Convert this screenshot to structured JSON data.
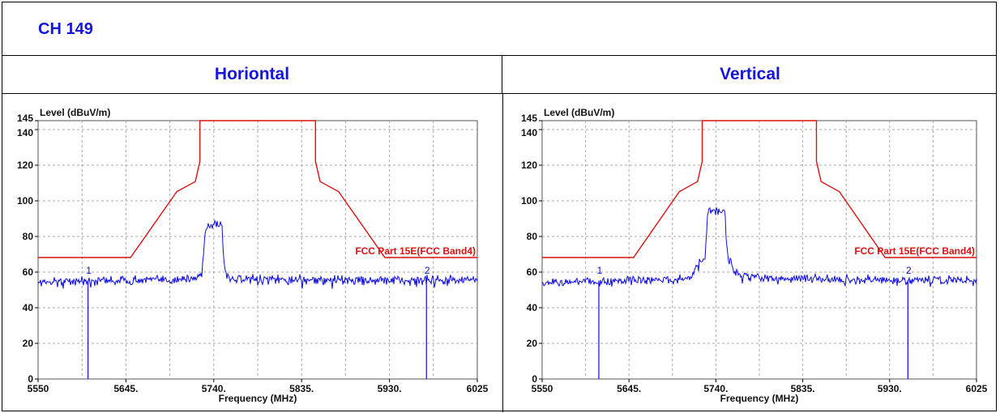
{
  "header": {
    "channel": "CH 149"
  },
  "chart_data": [
    {
      "type": "line",
      "polarization": "Horiontal",
      "ylabel": "Level (dBuV/m)",
      "xlabel": "Frequency (MHz)",
      "xlim": [
        5550,
        6025
      ],
      "ylim": [
        0,
        145
      ],
      "x_ticks": [
        5550,
        5645,
        5740,
        5835,
        5930,
        6025
      ],
      "x_tick_labels": [
        "5550",
        "5645.",
        "5740.",
        "5835.",
        "5930.",
        "6025"
      ],
      "y_ticks": [
        0,
        20,
        40,
        60,
        80,
        100,
        120,
        140,
        145
      ],
      "grid": true,
      "limit_line": {
        "name": "FCC Part 15E(FCC Band4)",
        "color": "#dd1111",
        "x": [
          5550,
          5650,
          5700,
          5720,
          5725,
          5725,
          5850,
          5850,
          5855,
          5875,
          5925,
          6025
        ],
        "y": [
          68.2,
          68.2,
          105.2,
          110.8,
          122.2,
          145,
          145,
          122.2,
          110.8,
          105.2,
          68.2,
          68.2
        ]
      },
      "trace": {
        "color": "#0d0ddd",
        "x": [
          5550,
          5600,
          5650,
          5700,
          5720,
          5727,
          5731,
          5734,
          5737,
          5740,
          5743,
          5746,
          5749,
          5751,
          5754,
          5758,
          5770,
          5800,
          5835,
          5880,
          5930,
          5980,
          6025
        ],
        "y": [
          54.5,
          55.2,
          55.4,
          55.8,
          56.5,
          58.5,
          85.5,
          86.2,
          85.8,
          86.7,
          87.8,
          86.1,
          86.4,
          64.5,
          58,
          56.5,
          56.1,
          55.6,
          55.9,
          55.7,
          55.3,
          55.7,
          55.6
        ]
      },
      "markers": [
        {
          "label": "1",
          "x": 5604
        },
        {
          "label": "2",
          "x": 5970
        }
      ]
    },
    {
      "type": "line",
      "polarization": "Vertical",
      "ylabel": "Level (dBuV/m)",
      "xlabel": "Frequency (MHz)",
      "xlim": [
        5550,
        6025
      ],
      "ylim": [
        0,
        145
      ],
      "x_ticks": [
        5550,
        5645,
        5740,
        5835,
        5930,
        6025
      ],
      "x_tick_labels": [
        "5550",
        "5645.",
        "5740.",
        "5835.",
        "5930.",
        "6025"
      ],
      "y_ticks": [
        0,
        20,
        40,
        60,
        80,
        100,
        120,
        140,
        145
      ],
      "grid": true,
      "limit_line": {
        "name": "FCC Part 15E(FCC Band4)",
        "color": "#dd1111",
        "x": [
          5550,
          5650,
          5700,
          5720,
          5725,
          5725,
          5850,
          5850,
          5855,
          5875,
          5925,
          6025
        ],
        "y": [
          68.2,
          68.2,
          105.2,
          110.8,
          122.2,
          145,
          145,
          122.2,
          110.8,
          105.2,
          68.2,
          68.2
        ]
      },
      "trace": {
        "color": "#0d0ddd",
        "x": [
          5550,
          5600,
          5650,
          5700,
          5715,
          5720,
          5724,
          5728,
          5731,
          5735,
          5740,
          5745,
          5750,
          5753,
          5756,
          5760,
          5765,
          5775,
          5800,
          5835,
          5880,
          5930,
          5980,
          6025
        ],
        "y": [
          54.3,
          55.1,
          55.6,
          56,
          57.3,
          63.8,
          66,
          67.5,
          93.8,
          94.4,
          93.9,
          94.2,
          94.5,
          68,
          66.3,
          60.5,
          58.5,
          57.6,
          56.2,
          56.8,
          55.7,
          55.1,
          55.9,
          55.5
        ]
      },
      "markers": [
        {
          "label": "1",
          "x": 5612
        },
        {
          "label": "2",
          "x": 5950
        }
      ]
    }
  ]
}
